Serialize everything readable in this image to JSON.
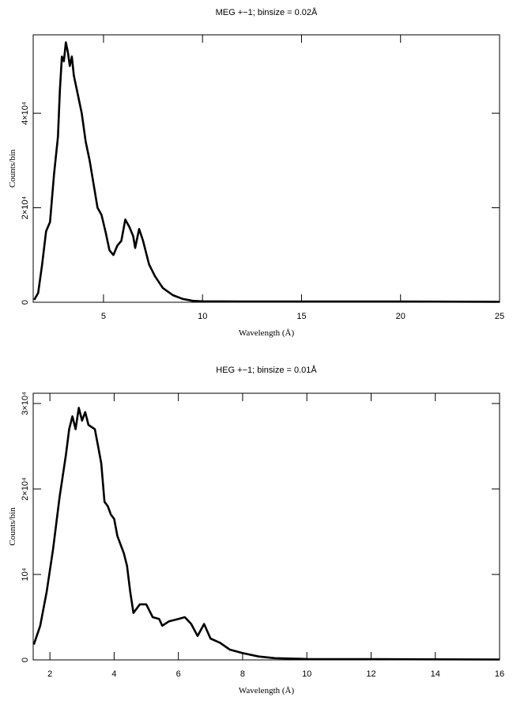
{
  "chart_data": [
    {
      "type": "line",
      "title": "MEG +−1; binsize = 0.02Å",
      "xlabel": "Wavelength (Å)",
      "ylabel": "Counts/bin",
      "color": "#000000",
      "x": [
        1.5,
        1.7,
        1.9,
        2.1,
        2.3,
        2.5,
        2.7,
        2.8,
        2.9,
        3.0,
        3.1,
        3.2,
        3.3,
        3.4,
        3.5,
        3.7,
        3.9,
        4.1,
        4.3,
        4.5,
        4.7,
        4.9,
        5.1,
        5.3,
        5.5,
        5.7,
        5.9,
        6.1,
        6.3,
        6.5,
        6.6,
        6.8,
        7.0,
        7.3,
        7.6,
        8.0,
        8.5,
        9.0,
        9.5,
        10,
        12,
        15,
        20,
        25
      ],
      "values": [
        500,
        2000,
        8000,
        15000,
        17000,
        27000,
        35000,
        45000,
        52000,
        51000,
        55000,
        53000,
        50000,
        52000,
        48000,
        44000,
        40000,
        34000,
        30000,
        25000,
        20000,
        18500,
        15000,
        11000,
        10000,
        12000,
        13000,
        17500,
        16000,
        14000,
        11500,
        15500,
        13000,
        8000,
        5500,
        3000,
        1500,
        700,
        300,
        200,
        150,
        150,
        150,
        100
      ],
      "xlim": [
        1.45,
        25
      ],
      "ylim": [
        0,
        56600
      ],
      "xticks": [
        5,
        10,
        15,
        20,
        25
      ],
      "yticks": [
        0,
        {
          "value": 20000,
          "label": "2×10⁴"
        },
        {
          "value": 40000,
          "label": "4×10⁴"
        }
      ]
    },
    {
      "type": "line",
      "title": "HEG +−1; binsize = 0.01Å",
      "xlabel": "Wavelength (Å)",
      "ylabel": "Counts/bin",
      "color": "#000000",
      "x": [
        1.5,
        1.7,
        1.9,
        2.1,
        2.3,
        2.5,
        2.6,
        2.7,
        2.8,
        2.9,
        3.0,
        3.1,
        3.2,
        3.4,
        3.5,
        3.6,
        3.7,
        3.8,
        3.9,
        4.0,
        4.1,
        4.3,
        4.4,
        4.5,
        4.6,
        4.8,
        5.0,
        5.2,
        5.4,
        5.5,
        5.7,
        6.0,
        6.2,
        6.4,
        6.6,
        6.8,
        7.0,
        7.3,
        7.6,
        8.0,
        8.5,
        9,
        10,
        12,
        16
      ],
      "values": [
        1800,
        4000,
        8000,
        13000,
        19000,
        24000,
        27000,
        28500,
        27000,
        29500,
        28000,
        29000,
        27500,
        27000,
        25000,
        23000,
        18500,
        18000,
        17000,
        16500,
        14500,
        12500,
        11000,
        8000,
        5500,
        6500,
        6500,
        5000,
        4800,
        4000,
        4500,
        4800,
        5000,
        4200,
        2800,
        4200,
        2500,
        2000,
        1200,
        800,
        400,
        200,
        100,
        80,
        50
      ],
      "xlim": [
        1.48,
        16
      ],
      "ylim": [
        0,
        31200
      ],
      "xticks": [
        2,
        4,
        6,
        8,
        10,
        12,
        14,
        16
      ],
      "yticks": [
        0,
        {
          "value": 10000,
          "label": "10⁴"
        },
        {
          "value": 20000,
          "label": "2×10⁴"
        },
        {
          "value": 30000,
          "label": "3×10⁴"
        }
      ]
    }
  ]
}
